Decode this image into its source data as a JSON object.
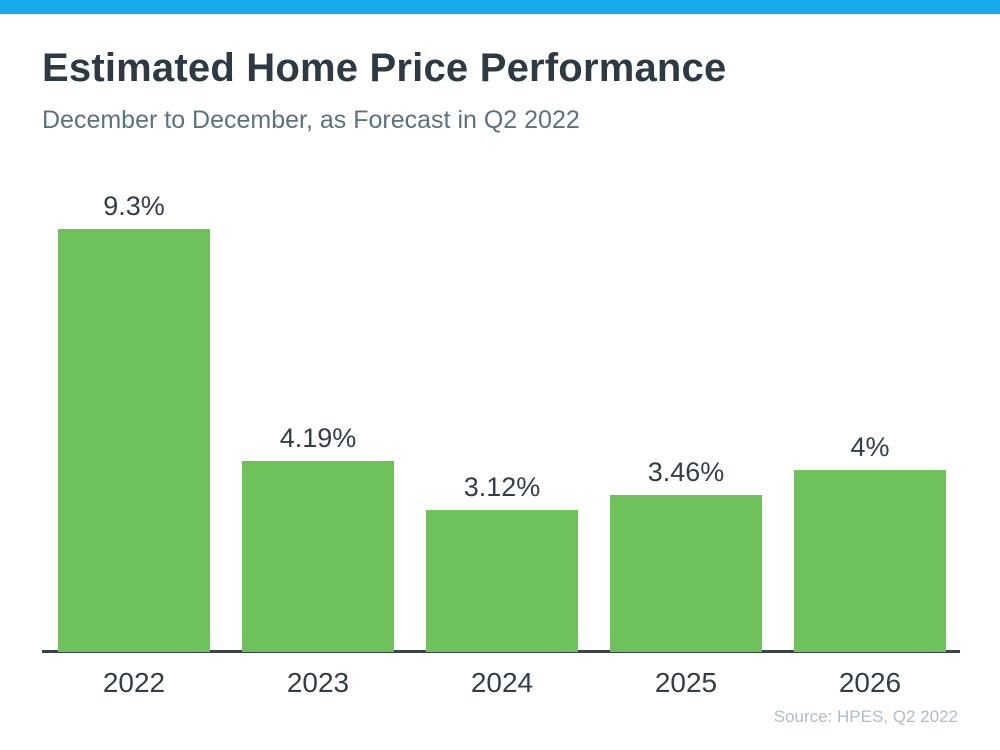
{
  "page": {
    "title": "Estimated Home Price Performance",
    "subtitle": "December to December, as Forecast in Q2 2022",
    "source": "Source: HPES, Q2 2022"
  },
  "colors": {
    "top_bar": "#18AAEC",
    "bar": "#6EC15B",
    "title": "#2E3A43",
    "subtitle": "#5B7280",
    "axis": "#37424A",
    "label": "#333E48",
    "source": "#AEBDC7",
    "bg": "#FFFFFF"
  },
  "chart_data": {
    "type": "bar",
    "title": "Estimated Home Price Performance",
    "subtitle": "December to December, as Forecast in Q2 2022",
    "categories": [
      "2022",
      "2023",
      "2024",
      "2025",
      "2026"
    ],
    "values": [
      9.3,
      4.19,
      3.12,
      3.46,
      4
    ],
    "value_labels": [
      "9.3%",
      "4.19%",
      "3.12%",
      "3.46%",
      "4%"
    ],
    "xlabel": "",
    "ylabel": "",
    "ylim": [
      0,
      10.4
    ],
    "grid": false,
    "legend": false,
    "bar_color": "#6EC15B",
    "source": "Source: HPES, Q2 2022"
  }
}
